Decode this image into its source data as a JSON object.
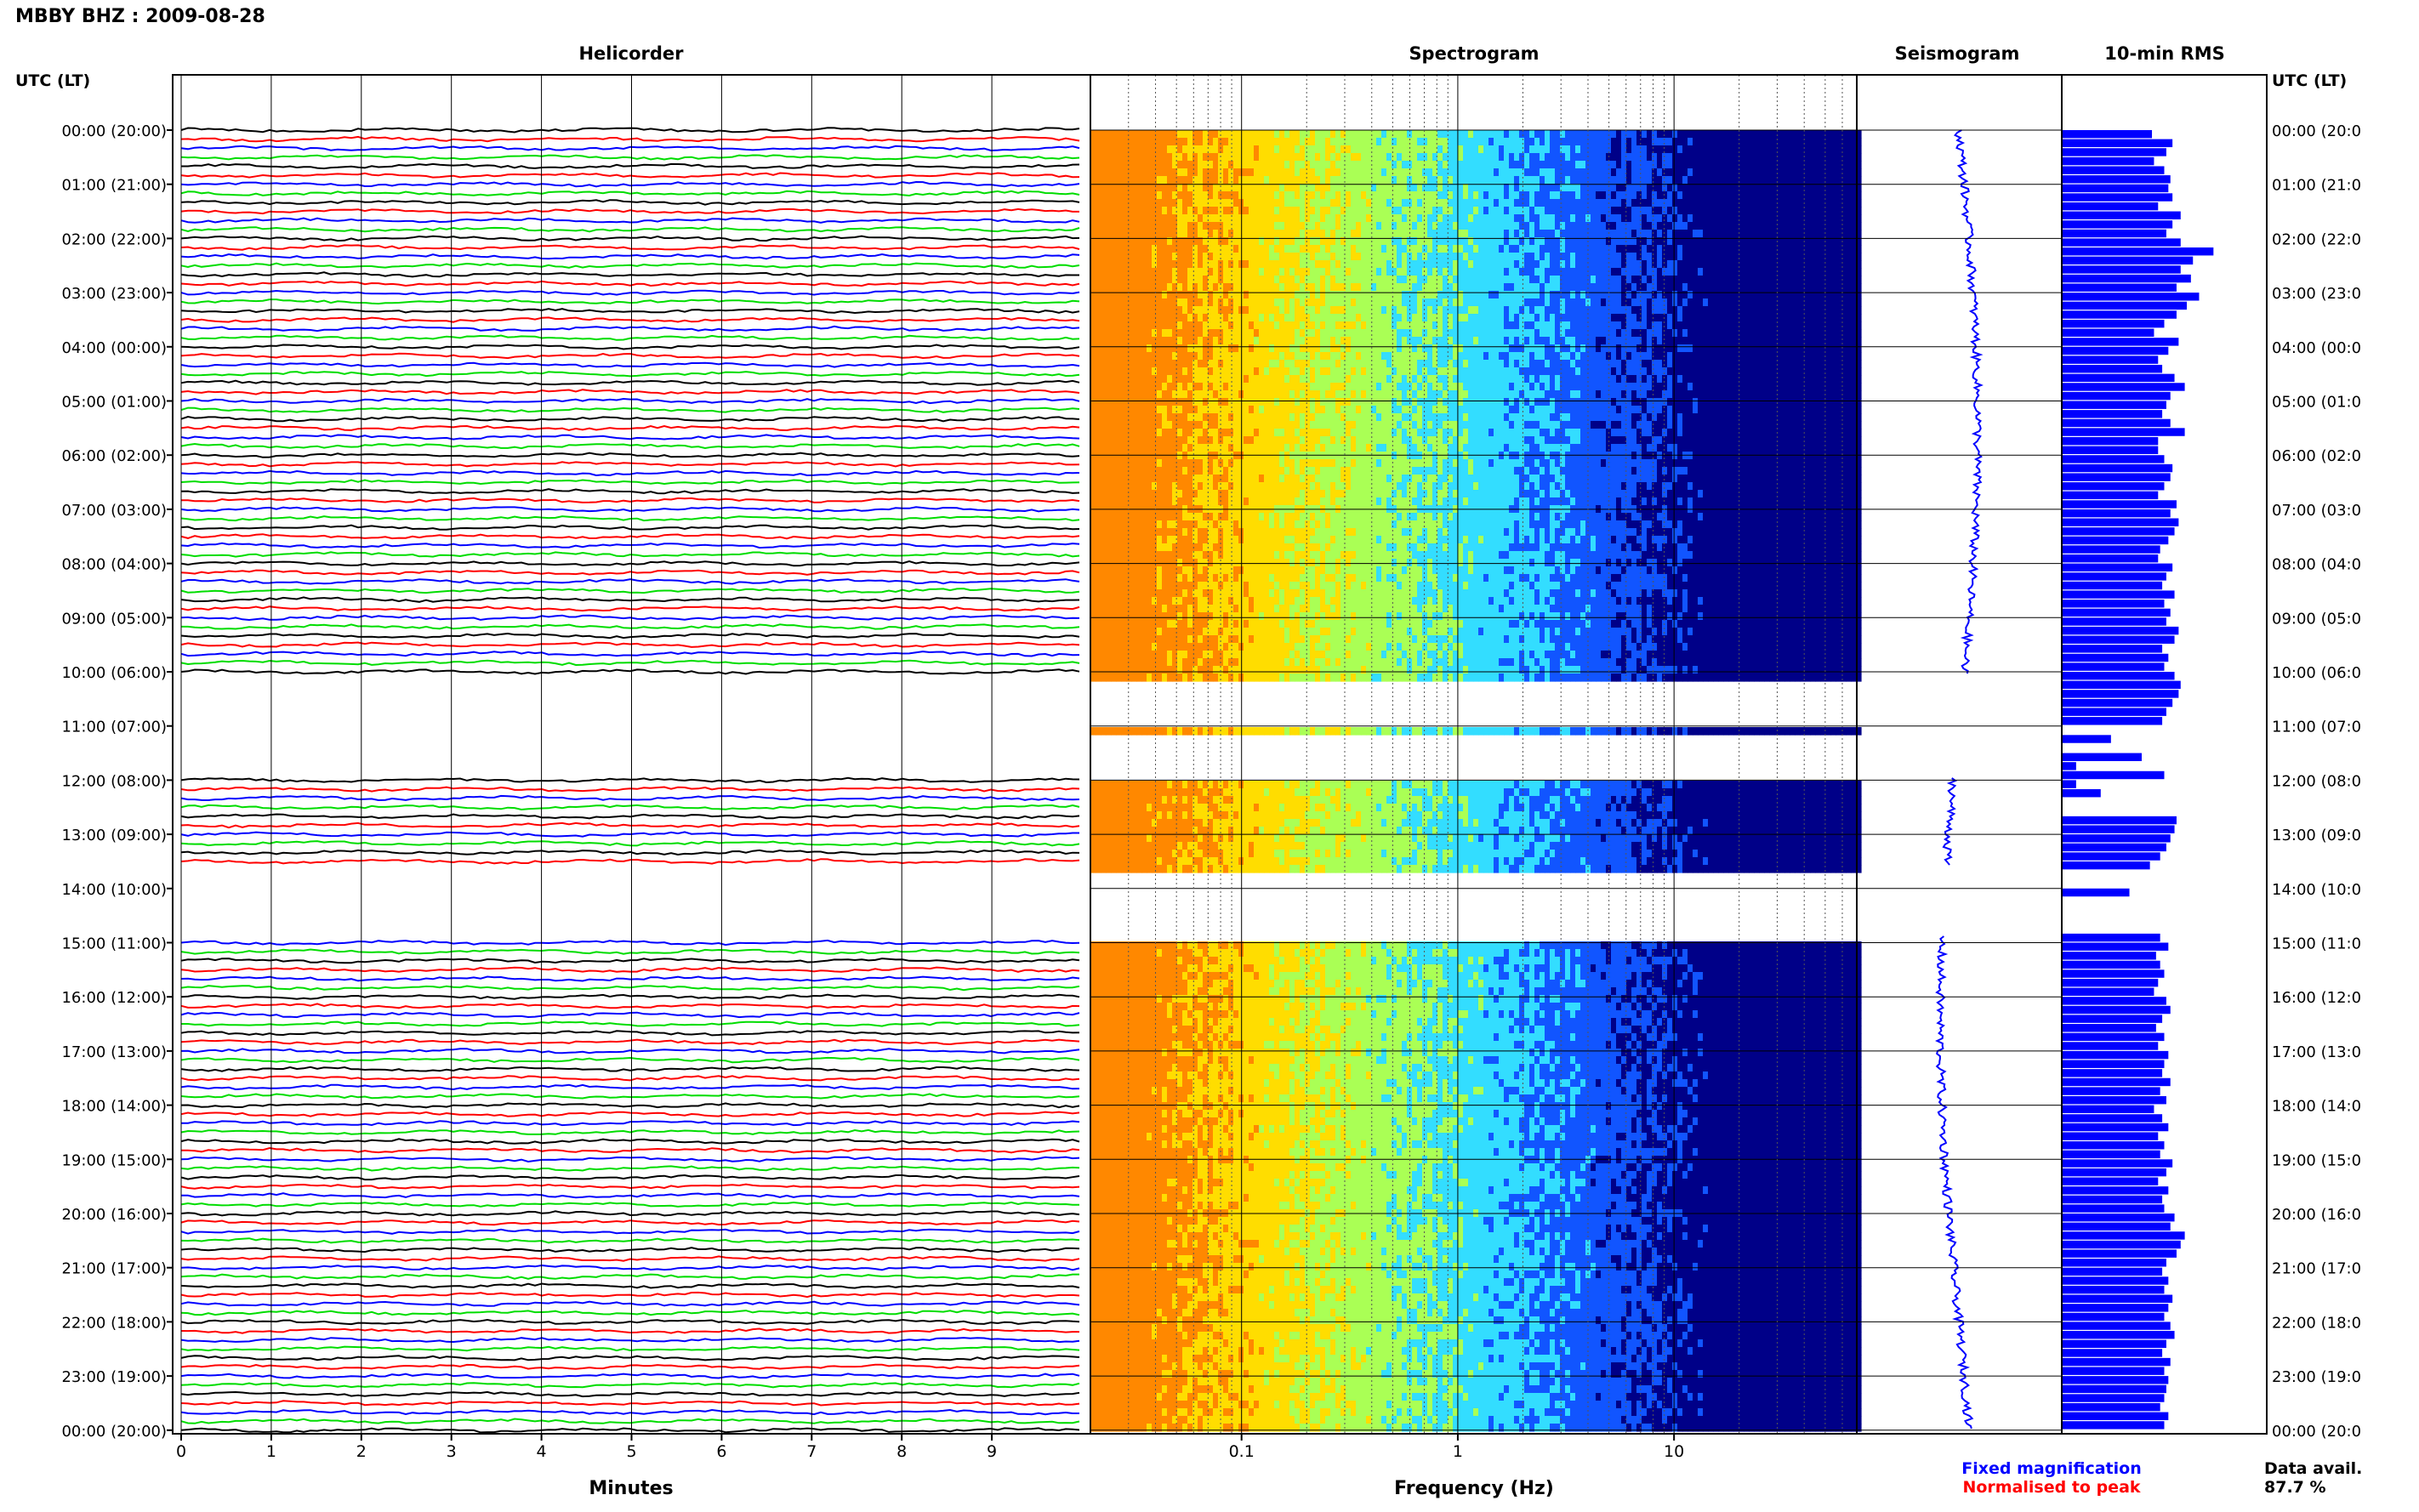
{
  "header": {
    "title": "MBBY BHZ : 2009-08-28",
    "time_axis_label": "UTC (LT)"
  },
  "panels": {
    "helicorder": "Helicorder",
    "spectrogram": "Spectrogram",
    "seismogram": "Seismogram",
    "rms": "10-min RMS"
  },
  "hour_labels": [
    "00:00 (20:00)",
    "01:00 (21:00)",
    "02:00 (22:00)",
    "03:00 (23:00)",
    "04:00 (00:00)",
    "05:00 (01:00)",
    "06:00 (02:00)",
    "07:00 (03:00)",
    "08:00 (04:00)",
    "09:00 (05:00)",
    "10:00 (06:00)",
    "11:00 (07:00)",
    "12:00 (08:00)",
    "13:00 (09:00)",
    "14:00 (10:00)",
    "15:00 (11:00)",
    "16:00 (12:00)",
    "17:00 (13:00)",
    "18:00 (14:00)",
    "19:00 (15:00)",
    "20:00 (16:00)",
    "21:00 (17:00)",
    "22:00 (18:00)",
    "23:00 (19:00)",
    "00:00 (20:00)"
  ],
  "right_hour_labels": [
    "00:00 (20:0",
    "01:00 (21:0",
    "02:00 (22:0",
    "03:00 (23:0",
    "04:00 (00:0",
    "05:00 (01:0",
    "06:00 (02:0",
    "07:00 (03:0",
    "08:00 (04:0",
    "09:00 (05:0",
    "10:00 (06:0",
    "11:00 (07:0",
    "12:00 (08:0",
    "13:00 (09:0",
    "14:00 (10:0",
    "15:00 (11:0",
    "16:00 (12:0",
    "17:00 (13:0",
    "18:00 (14:0",
    "19:00 (15:0",
    "20:00 (16:0",
    "21:00 (17:0",
    "22:00 (18:0",
    "23:00 (19:0",
    "00:00 (20:0"
  ],
  "footer": {
    "minutes_label": "Minutes",
    "frequency_label": "Frequency (Hz)",
    "legend_fixed": "Fixed magnification",
    "legend_normalised": "Normalised to peak",
    "data_avail_label": "Data avail.",
    "data_avail_value": "87.7 %"
  },
  "colors": {
    "trace_cycle": [
      "#000000",
      "#ff0000",
      "#0000ff",
      "#00dd00"
    ],
    "seismogram": "#0000ff",
    "rms_bar": "#0000ff",
    "legend_fixed": "#0000ff",
    "legend_normalised": "#ff0000"
  },
  "chart_data": [
    {
      "type": "line",
      "panel": "Helicorder",
      "xlabel": "Minutes",
      "x_ticks": [
        "0",
        "1",
        "2",
        "3",
        "4",
        "5",
        "6",
        "7",
        "8",
        "9"
      ],
      "xlim": [
        0,
        10
      ],
      "rows_per_hour": 6,
      "gap_utc_hours": [
        [
          10.05,
          11.0
        ],
        [
          11.05,
          11.95
        ],
        [
          13.6,
          14.85
        ]
      ]
    },
    {
      "type": "heatmap",
      "panel": "Spectrogram",
      "xlabel": "Frequency (Hz)",
      "x_scale": "log",
      "x_ticks": [
        "0.1",
        "1",
        "10"
      ],
      "xlim": [
        0.02,
        70
      ],
      "colormap": [
        "#ff8800",
        "#ffdd00",
        "#aaff55",
        "#33ddff",
        "#1155ff",
        "#000088"
      ]
    },
    {
      "type": "line",
      "panel": "Seismogram",
      "note_legend": "Fixed magnification"
    },
    {
      "type": "bar",
      "panel": "10-min RMS",
      "orientation": "horizontal",
      "rms_values": [
        0.44,
        0.54,
        0.51,
        0.45,
        0.5,
        0.53,
        0.52,
        0.54,
        0.47,
        0.58,
        0.54,
        0.51,
        0.58,
        0.74,
        0.64,
        0.58,
        0.63,
        0.56,
        0.67,
        0.61,
        0.56,
        0.5,
        0.45,
        0.57,
        0.52,
        0.47,
        0.49,
        0.55,
        0.6,
        0.53,
        0.51,
        0.49,
        0.53,
        0.6,
        0.47,
        0.47,
        0.5,
        0.54,
        0.53,
        0.5,
        0.47,
        0.56,
        0.53,
        0.57,
        0.55,
        0.52,
        0.48,
        0.47,
        0.54,
        0.51,
        0.49,
        0.55,
        0.5,
        0.53,
        0.51,
        0.57,
        0.55,
        0.49,
        0.52,
        0.5,
        0.55,
        0.58,
        0.57,
        0.54,
        0.51,
        0.49,
        null,
        0.24,
        null,
        0.39,
        0.07,
        0.5,
        0.07,
        0.19,
        null,
        null,
        0.56,
        0.55,
        0.53,
        0.51,
        0.48,
        0.43,
        null,
        null,
        0.33,
        null,
        null,
        null,
        null,
        0.48,
        0.52,
        0.46,
        0.48,
        0.5,
        0.47,
        0.45,
        0.51,
        0.53,
        0.49,
        0.46,
        0.5,
        0.47,
        0.52,
        0.5,
        0.49,
        0.53,
        0.48,
        0.51,
        0.45,
        0.49,
        0.52,
        0.47,
        0.5,
        0.48,
        0.54,
        0.51,
        0.47,
        0.52,
        0.49,
        0.5,
        0.55,
        0.53,
        0.6,
        0.58,
        0.56,
        0.51,
        0.49,
        0.52,
        0.5,
        0.54,
        0.52,
        0.5,
        0.53,
        0.55,
        0.51,
        0.49,
        0.53,
        0.5,
        0.52,
        0.51,
        0.5,
        0.48,
        0.52,
        0.5
      ]
    }
  ]
}
